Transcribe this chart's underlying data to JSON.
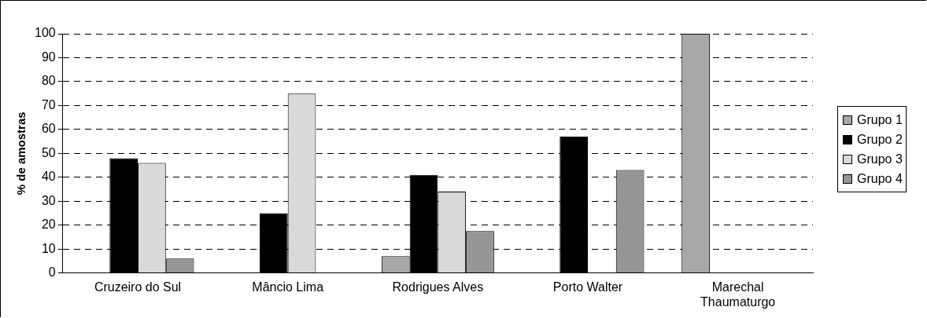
{
  "chart_data": {
    "type": "bar",
    "ylabel": "% de amostras",
    "categories": [
      "Cruzeiro do Sul",
      "Mâncio Lima",
      "Rodrigues Alves",
      "Porto Walter",
      "Marechal Thaumaturgo"
    ],
    "series": [
      {
        "name": "Grupo 1",
        "color": "#a8a8a8",
        "values": [
          null,
          null,
          7,
          null,
          100
        ]
      },
      {
        "name": "Grupo 2",
        "color": "#000000",
        "values": [
          48,
          25,
          41,
          57,
          null
        ]
      },
      {
        "name": "Grupo 3",
        "color": "#d9d9d9",
        "values": [
          46,
          75,
          34,
          null,
          null
        ]
      },
      {
        "name": "Grupo 4",
        "color": "#969696",
        "values": [
          6,
          null,
          17.5,
          43,
          null
        ]
      }
    ],
    "ylim": [
      0,
      100
    ],
    "yticks": [
      0,
      10,
      20,
      30,
      40,
      50,
      60,
      70,
      80,
      90,
      100
    ],
    "grid": "y",
    "legend": "right"
  }
}
